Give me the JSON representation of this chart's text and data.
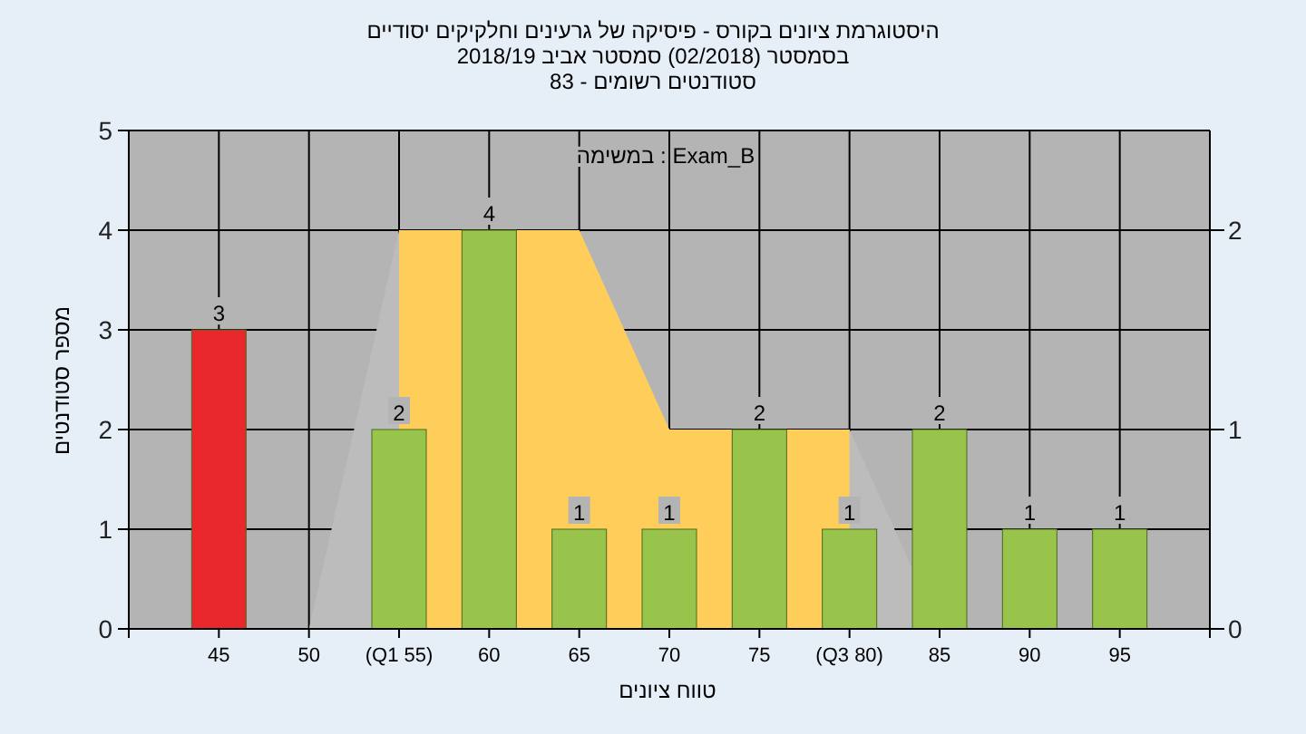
{
  "chart_data": {
    "type": "bar",
    "title": "היסטוגרמת ציונים בקורס - פיסיקה של גרעינים וחלקיקים יסודיים",
    "subtitle": "בסמסטר  (02/2018)  סמסטר אביב 2018/19",
    "annotations": [
      "סטודנטים רשומים - 83",
      "במשימה : Exam_B"
    ],
    "xlabel": "טווח ציונים",
    "ylabel": "מספר סטודנטים",
    "categories": [
      "45",
      "50",
      "(Q1 55)",
      "60",
      "65",
      "70",
      "75",
      "(Q3 80)",
      "85",
      "90",
      "95"
    ],
    "series": [
      {
        "type": "area",
        "axis": "y2",
        "color": "#bcbcbc",
        "values": [
          null,
          0,
          2,
          2,
          2,
          1,
          1,
          1,
          0,
          null,
          null
        ]
      },
      {
        "type": "area",
        "axis": "y2",
        "color": "#fecd5a",
        "values": [
          null,
          null,
          2,
          2,
          2,
          1,
          1,
          1,
          null,
          null,
          null
        ]
      },
      {
        "type": "bar",
        "values": [
          3,
          0,
          2,
          4,
          1,
          1,
          2,
          1,
          2,
          1,
          1
        ],
        "value_labels": [
          "3",
          null,
          "2",
          "4",
          "1",
          "1",
          "2",
          "1",
          "2",
          "1",
          "1"
        ],
        "colors": [
          "#e8282c",
          "#98c44c",
          "#98c44c",
          "#98c44c",
          "#98c44c",
          "#98c44c",
          "#98c44c",
          "#98c44c",
          "#98c44c",
          "#98c44c",
          "#98c44c"
        ]
      }
    ],
    "ylim": [
      0,
      5
    ],
    "yticks": [
      0,
      1,
      2,
      3,
      4,
      5
    ],
    "y2lim": [
      0,
      2.5
    ],
    "y2ticks": [
      0,
      1,
      2
    ],
    "grid": true
  }
}
